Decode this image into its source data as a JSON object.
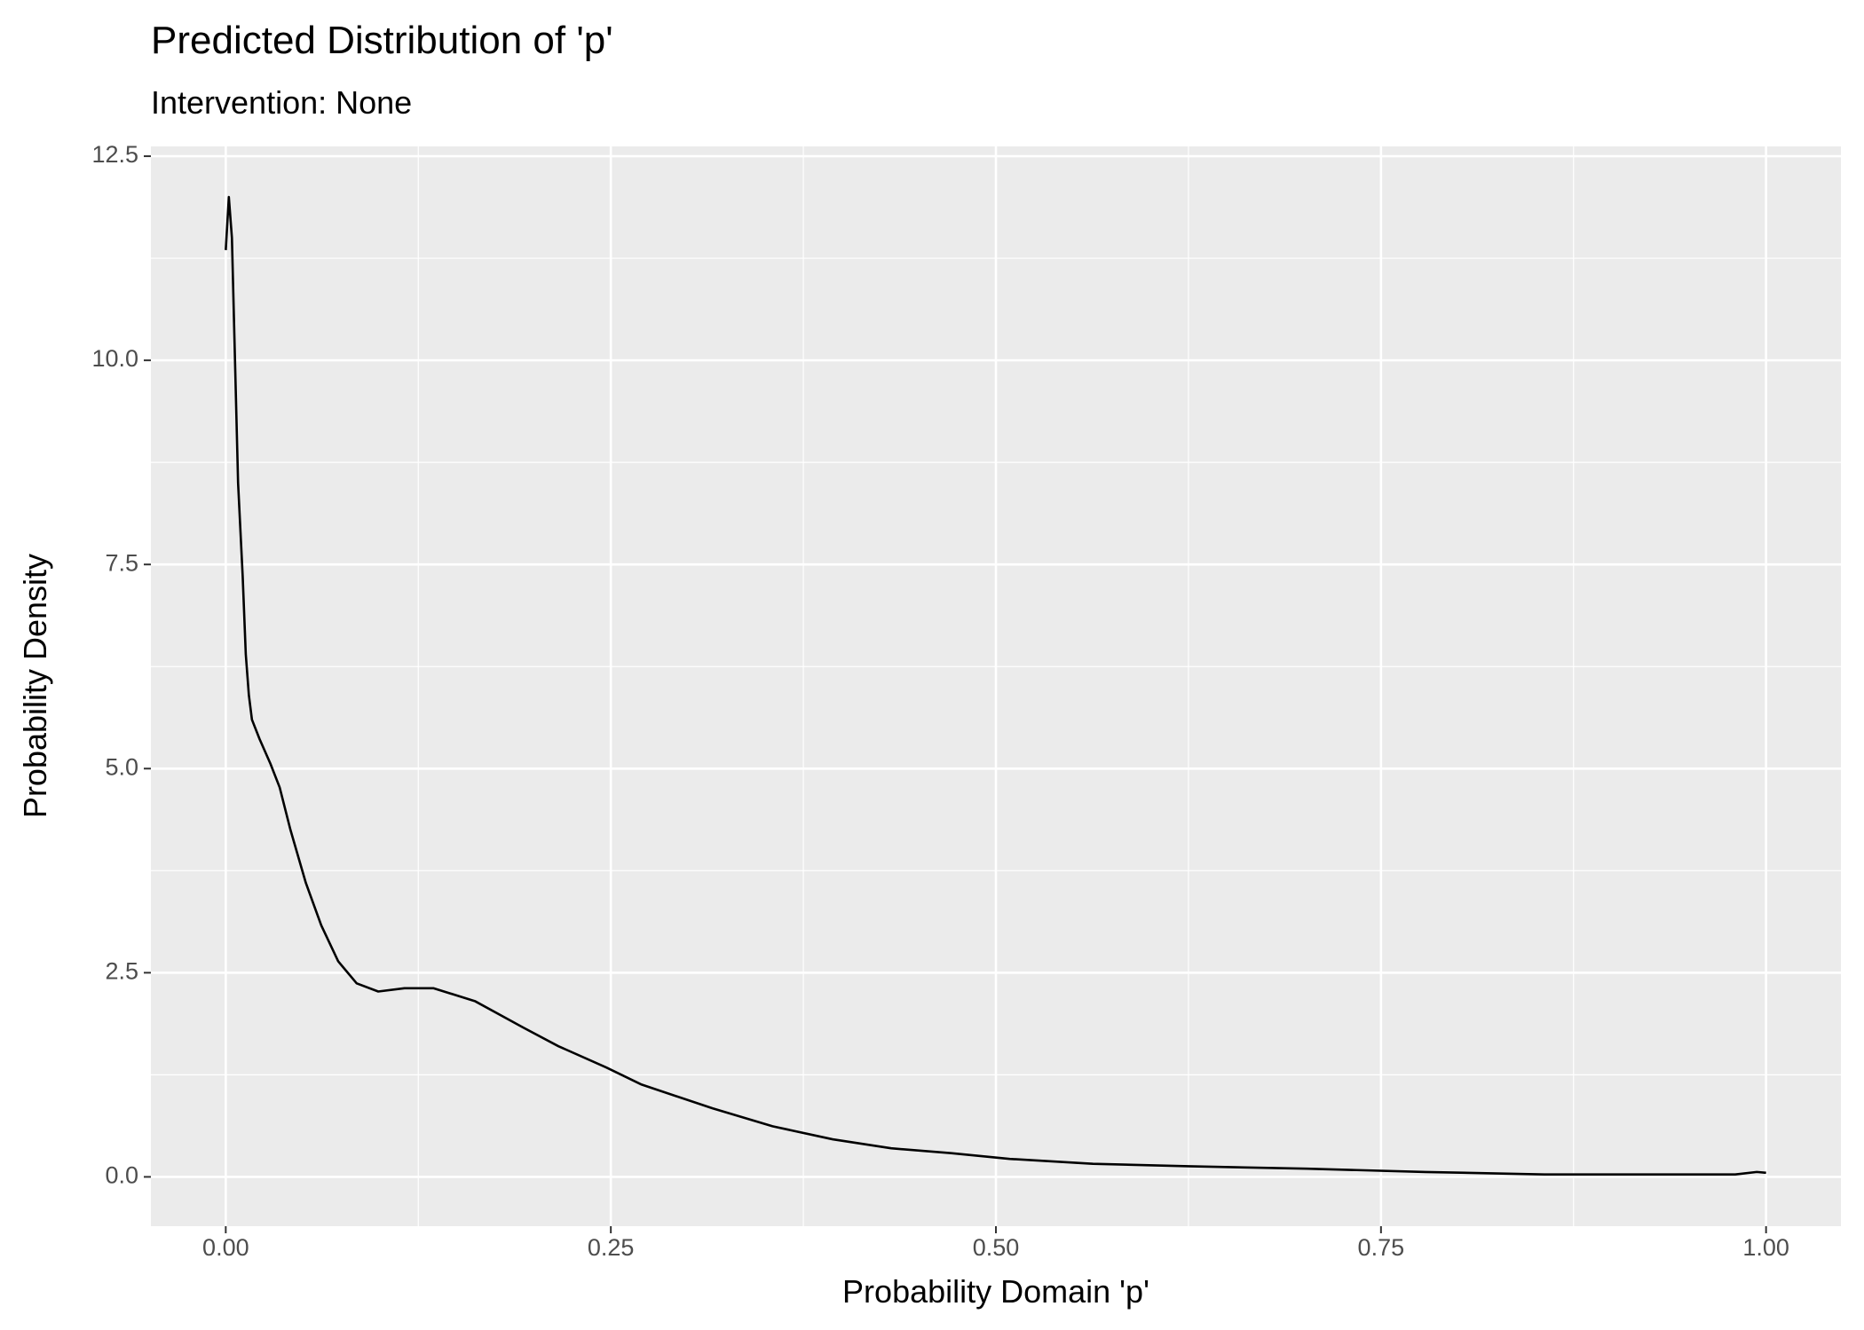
{
  "chart_data": {
    "type": "line",
    "title": "Predicted Distribution of 'p'",
    "subtitle": "Intervention: None",
    "x_label": "Probability Domain 'p'",
    "y_label": "Probability Density",
    "x": [
      0.0,
      0.002,
      0.004,
      0.008,
      0.011,
      0.013,
      0.015,
      0.017,
      0.022,
      0.029,
      0.035,
      0.042,
      0.052,
      0.062,
      0.073,
      0.085,
      0.099,
      0.116,
      0.135,
      0.162,
      0.193,
      0.216,
      0.247,
      0.27,
      0.316,
      0.355,
      0.394,
      0.432,
      0.471,
      0.509,
      0.563,
      0.625,
      0.702,
      0.779,
      0.856,
      0.934,
      0.98,
      0.994,
      1.0
    ],
    "series": [
      {
        "name": "density",
        "color": "#000000",
        "values": [
          11.35,
          12.0,
          11.5,
          8.5,
          7.35,
          6.4,
          5.9,
          5.6,
          5.36,
          5.06,
          4.77,
          4.25,
          3.6,
          3.08,
          2.64,
          2.37,
          2.27,
          2.31,
          2.31,
          2.15,
          1.83,
          1.6,
          1.34,
          1.13,
          0.84,
          0.62,
          0.46,
          0.35,
          0.29,
          0.22,
          0.16,
          0.13,
          0.1,
          0.06,
          0.03,
          0.03,
          0.03,
          0.06,
          0.05
        ]
      }
    ],
    "xlim": [
      -0.0486,
      1.0486
    ],
    "ylim": [
      -0.604,
      12.62
    ],
    "xticks": [
      {
        "value": 0,
        "label": "0.00"
      },
      0.25,
      {
        "value": 0.5,
        "label": "0.50"
      },
      0.75,
      {
        "value": 1,
        "label": "1.00"
      }
    ],
    "yticks": [
      {
        "value": 0,
        "label": "0.0"
      },
      2.5,
      {
        "value": 5,
        "label": "5.0"
      },
      7.5,
      {
        "value": 10,
        "label": "10.0"
      },
      12.5
    ],
    "grid": true,
    "background": "#ebebeb"
  }
}
